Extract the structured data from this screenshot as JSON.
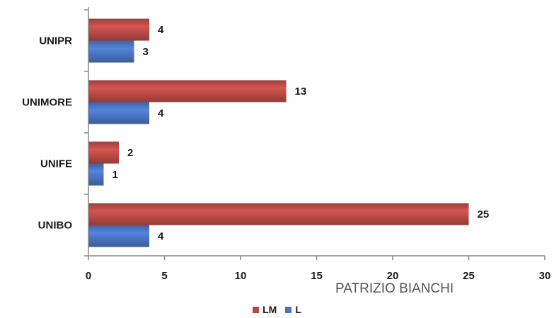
{
  "chart_data": {
    "type": "bar",
    "orientation": "horizontal",
    "categories": [
      "UNIPR",
      "UNIMORE",
      "UNIFE",
      "UNIBO"
    ],
    "series": [
      {
        "name": "LM",
        "color": "#b84a45",
        "values": [
          4,
          13,
          2,
          25
        ]
      },
      {
        "name": "L",
        "color": "#4a73c0",
        "values": [
          3,
          4,
          1,
          4
        ]
      }
    ],
    "xlim": [
      0,
      30
    ],
    "xticks": [
      0,
      5,
      10,
      15,
      20,
      25,
      30
    ],
    "grid": false,
    "legend_position": "bottom-center"
  },
  "watermark": "PATRIZIO BIANCHI"
}
